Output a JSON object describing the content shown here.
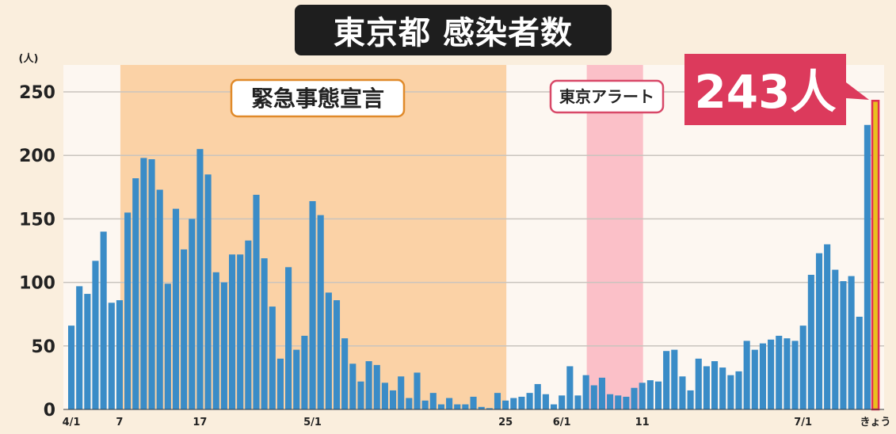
{
  "title": "東京都 感染者数",
  "chart_data": {
    "type": "bar",
    "ylabel": "(人)",
    "ylim": [
      0,
      260
    ],
    "yticks": [
      0,
      50,
      100,
      150,
      200,
      250
    ],
    "grid": true,
    "bar_color": "#3a8cc7",
    "highlight_color": "#e8c01f",
    "highlight_border": "#e03050",
    "xtick_labels": [
      {
        "index": 0,
        "label": "4/1"
      },
      {
        "index": 6,
        "label": "7"
      },
      {
        "index": 16,
        "label": "17"
      },
      {
        "index": 30,
        "label": "5/1"
      },
      {
        "index": 54,
        "label": "25"
      },
      {
        "index": 61,
        "label": "6/1"
      },
      {
        "index": 71,
        "label": "11"
      },
      {
        "index": 91,
        "label": "7/1"
      },
      {
        "index": 100,
        "label": "きょう"
      }
    ],
    "values": [
      66,
      97,
      91,
      117,
      140,
      84,
      86,
      155,
      182,
      198,
      197,
      173,
      99,
      158,
      126,
      150,
      205,
      185,
      108,
      100,
      122,
      122,
      133,
      169,
      119,
      81,
      40,
      112,
      47,
      58,
      164,
      153,
      92,
      86,
      56,
      36,
      22,
      38,
      35,
      21,
      15,
      26,
      9,
      29,
      7,
      13,
      4,
      9,
      4,
      4,
      10,
      2,
      1,
      13,
      7,
      9,
      10,
      13,
      20,
      12,
      4,
      11,
      34,
      11,
      27,
      19,
      25,
      12,
      11,
      10,
      17,
      21,
      23,
      22,
      46,
      47,
      26,
      15,
      40,
      34,
      38,
      33,
      27,
      30,
      54,
      47,
      52,
      55,
      58,
      56,
      54,
      66,
      106,
      123,
      130,
      110,
      101,
      105,
      73,
      224,
      243
    ],
    "highlight_index": 100,
    "spans": [
      {
        "label": "緊急事態宣言",
        "start": 6,
        "end": 54,
        "color": "#fbd2a6",
        "label_border": "#e08a2a",
        "label_text_color": "#222"
      },
      {
        "label": "東京アラート",
        "start": 64,
        "end": 71,
        "color": "#fbc0c8",
        "label_border": "#d84868",
        "label_text_color": "#222"
      }
    ],
    "callout": {
      "label": "243人",
      "color": "#dc3a5c",
      "text_color": "#ffffff"
    }
  }
}
